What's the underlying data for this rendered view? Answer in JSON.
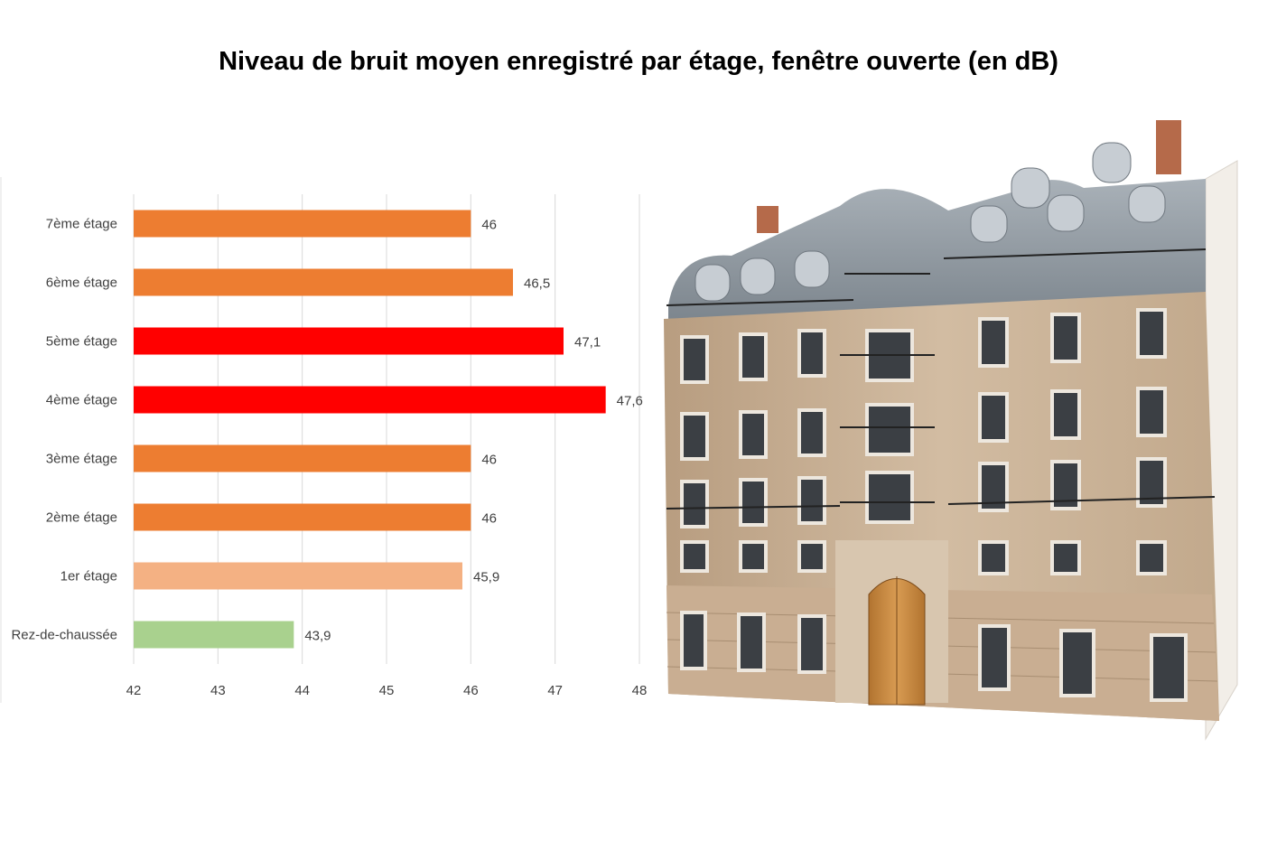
{
  "title": "Niveau de bruit moyen enregistré par étage, fenêtre ouverte (en dB)",
  "chart_data": {
    "type": "bar",
    "orientation": "horizontal",
    "categories": [
      "7ème étage",
      "6ème étage",
      "5ème étage",
      "4ème étage",
      "3ème étage",
      "2ème étage",
      "1er étage",
      "Rez-de-chaussée"
    ],
    "values": [
      46,
      46.5,
      47.1,
      47.6,
      46,
      46,
      45.9,
      43.9
    ],
    "value_labels": [
      "46",
      "46,5",
      "47,1",
      "47,6",
      "46",
      "46",
      "45,9",
      "43,9"
    ],
    "bar_colors": [
      "#ED7D31",
      "#ED7D31",
      "#FF0000",
      "#FF0000",
      "#ED7D31",
      "#ED7D31",
      "#F4B183",
      "#A9D18E"
    ],
    "xlim": [
      42,
      48
    ],
    "x_ticks": [
      "42",
      "43",
      "44",
      "45",
      "46",
      "47",
      "48"
    ],
    "grid": true,
    "legend": "none",
    "xlabel": "",
    "ylabel": ""
  },
  "illustration": {
    "icon": "haussmann-building-illustration",
    "wall_color": "#CDB59A",
    "roof_color": "#8C959E",
    "door_color": "#C98A3C"
  }
}
